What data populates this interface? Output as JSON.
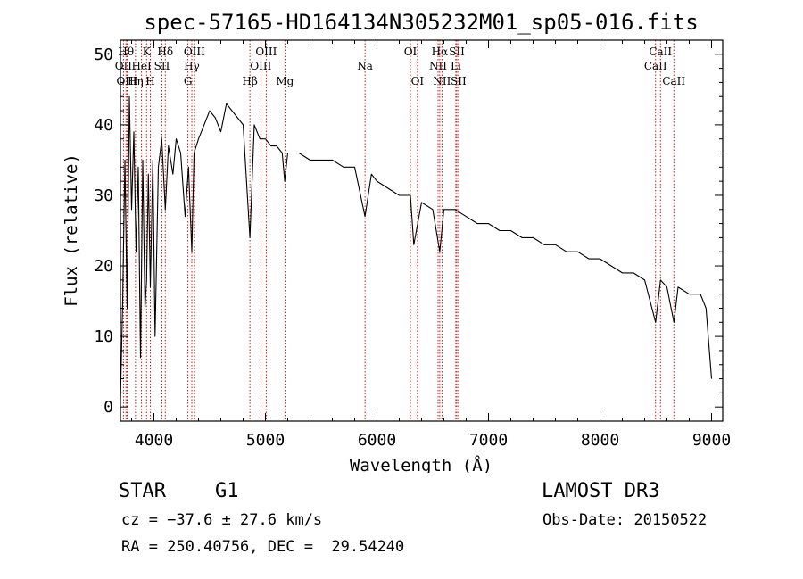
{
  "chart_data": {
    "type": "line",
    "title": "spec-57165-HD164134N305232M01_sp05-016.fits",
    "xlabel": "Wavelength (Å)",
    "ylabel": "Flux (relative)",
    "xlim": [
      3700,
      9100
    ],
    "ylim": [
      -2,
      52
    ],
    "xticks": [
      4000,
      5000,
      6000,
      7000,
      8000,
      9000
    ],
    "yticks": [
      0,
      10,
      20,
      30,
      40,
      50
    ],
    "series": [
      {
        "name": "flux",
        "x": [
          3700,
          3720,
          3740,
          3760,
          3780,
          3800,
          3820,
          3840,
          3860,
          3880,
          3900,
          3920,
          3934,
          3950,
          3968,
          3990,
          4010,
          4040,
          4070,
          4102,
          4130,
          4170,
          4200,
          4240,
          4280,
          4310,
          4340,
          4360,
          4400,
          4450,
          4500,
          4550,
          4600,
          4650,
          4700,
          4750,
          4800,
          4861,
          4900,
          4950,
          5000,
          5050,
          5100,
          5150,
          5173,
          5200,
          5300,
          5400,
          5500,
          5600,
          5700,
          5800,
          5893,
          5950,
          6000,
          6100,
          6200,
          6300,
          6330,
          6400,
          6500,
          6563,
          6600,
          6700,
          6800,
          6900,
          7000,
          7100,
          7200,
          7300,
          7400,
          7500,
          7600,
          7700,
          7800,
          7900,
          8000,
          8100,
          8200,
          8300,
          8400,
          8498,
          8542,
          8600,
          8662,
          8700,
          8800,
          8900,
          8950,
          9000
        ],
        "y": [
          1,
          15,
          35,
          14,
          44,
          28,
          39,
          22,
          34,
          7,
          35,
          14,
          18,
          33,
          17,
          35,
          10,
          34,
          38,
          28,
          37,
          33,
          38,
          36,
          27,
          34,
          22,
          36,
          38,
          40,
          42,
          41,
          39,
          43,
          42,
          41,
          40,
          24,
          40,
          38,
          38,
          37,
          37,
          36,
          32,
          36,
          36,
          35,
          35,
          35,
          34,
          34,
          27,
          33,
          32,
          31,
          30,
          30,
          23,
          29,
          28,
          22,
          28,
          28,
          27,
          26,
          26,
          25,
          25,
          24,
          24,
          23,
          23,
          22,
          22,
          21,
          21,
          20,
          19,
          19,
          18,
          12,
          18,
          17,
          12,
          17,
          16,
          16,
          14,
          4
        ]
      }
    ],
    "lines": [
      {
        "label": "OII",
        "wave": 3727,
        "row": 2
      },
      {
        "label": "Hθ",
        "wave": 3750,
        "row": 1
      },
      {
        "label": "OIII",
        "wave": 3760,
        "row": 3
      },
      {
        "label": "Hη",
        "wave": 3835,
        "row": 3
      },
      {
        "label": "HeI",
        "wave": 3889,
        "row": 2
      },
      {
        "label": "K",
        "wave": 3934,
        "row": 1
      },
      {
        "label": "H",
        "wave": 3968,
        "row": 3
      },
      {
        "label": "SII",
        "wave": 4072,
        "row": 2
      },
      {
        "label": "Hδ",
        "wave": 4102,
        "row": 1
      },
      {
        "label": "G",
        "wave": 4305,
        "row": 3
      },
      {
        "label": "Hγ",
        "wave": 4340,
        "row": 2
      },
      {
        "label": "OIII",
        "wave": 4363,
        "row": 1
      },
      {
        "label": "Hβ",
        "wave": 4861,
        "row": 3
      },
      {
        "label": "OIII",
        "wave": 4959,
        "row": 2
      },
      {
        "label": "OIII",
        "wave": 5007,
        "row": 1
      },
      {
        "label": "Mg",
        "wave": 5175,
        "row": 3
      },
      {
        "label": "Na",
        "wave": 5893,
        "row": 2
      },
      {
        "label": "OI",
        "wave": 6300,
        "row": 1
      },
      {
        "label": "OI",
        "wave": 6363,
        "row": 3
      },
      {
        "label": "NII",
        "wave": 6548,
        "row": 2
      },
      {
        "label": "Hα",
        "wave": 6563,
        "row": 1
      },
      {
        "label": "NII",
        "wave": 6583,
        "row": 3
      },
      {
        "label": "Li",
        "wave": 6707,
        "row": 2
      },
      {
        "label": "SII",
        "wave": 6716,
        "row": 1
      },
      {
        "label": "SII",
        "wave": 6731,
        "row": 3
      },
      {
        "label": "CaII",
        "wave": 8498,
        "row": 2
      },
      {
        "label": "CaII",
        "wave": 8542,
        "row": 1
      },
      {
        "label": "CaII",
        "wave": 8662,
        "row": 3
      }
    ]
  },
  "info": {
    "class_label": "STAR",
    "subclass_label": "G1",
    "survey_label": "LAMOST DR3",
    "cz_text": "cz = −37.6 ± 27.6 km/s",
    "obs_date_text": "Obs-Date: 20150522",
    "coords_text": "RA = 250.40756, DEC =  29.54240"
  }
}
